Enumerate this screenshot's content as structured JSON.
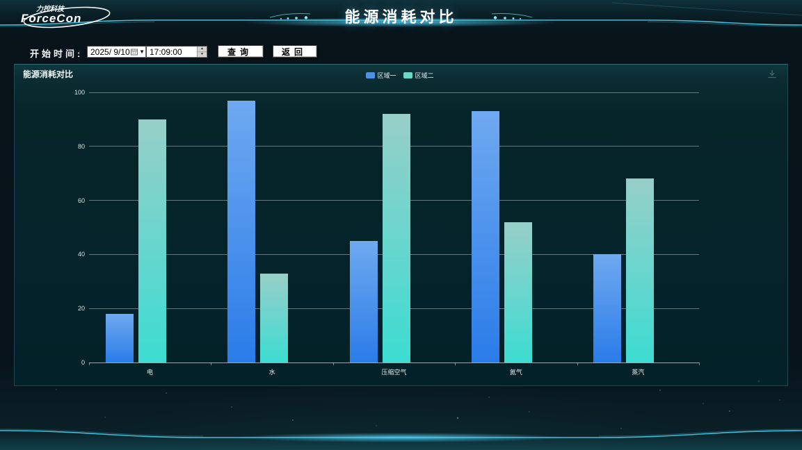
{
  "header": {
    "brand_top": "力控科技",
    "brand_name": "ForceCon",
    "title": "能源消耗对比"
  },
  "toolbar": {
    "start_label": "开始时间:",
    "date_value": "2025/ 9/10",
    "time_value": "17:09:00",
    "query_button": "查询",
    "back_button": "返回"
  },
  "panel": {
    "title": "能源消耗对比"
  },
  "chart_data": {
    "type": "bar",
    "title": "能源消耗对比",
    "categories": [
      "电",
      "水",
      "压缩空气",
      "氮气",
      "蒸汽"
    ],
    "series": [
      {
        "name": "区域一",
        "values": [
          18,
          97,
          45,
          93,
          40
        ],
        "legend_color": "#4d92e2",
        "color_top": "#6fa9f0",
        "color_bottom": "#2a7ce9"
      },
      {
        "name": "区域二",
        "values": [
          90,
          33,
          92,
          52,
          68
        ],
        "legend_color": "#6cd7c4",
        "color_top": "#97cfc8",
        "color_bottom": "#3cdcd2"
      }
    ],
    "ylim": [
      0,
      100
    ],
    "yticks": [
      0,
      20,
      40,
      60,
      80,
      100
    ],
    "xlabel": "",
    "ylabel": "",
    "grid": true,
    "legend_position": "top-center"
  },
  "colors": {
    "accent_cyan": "#3fd8f0",
    "panel_border": "#1d4a52",
    "grid_line": "#c0ced1",
    "series1": "#4d92e2",
    "series2": "#6cd7c4"
  }
}
